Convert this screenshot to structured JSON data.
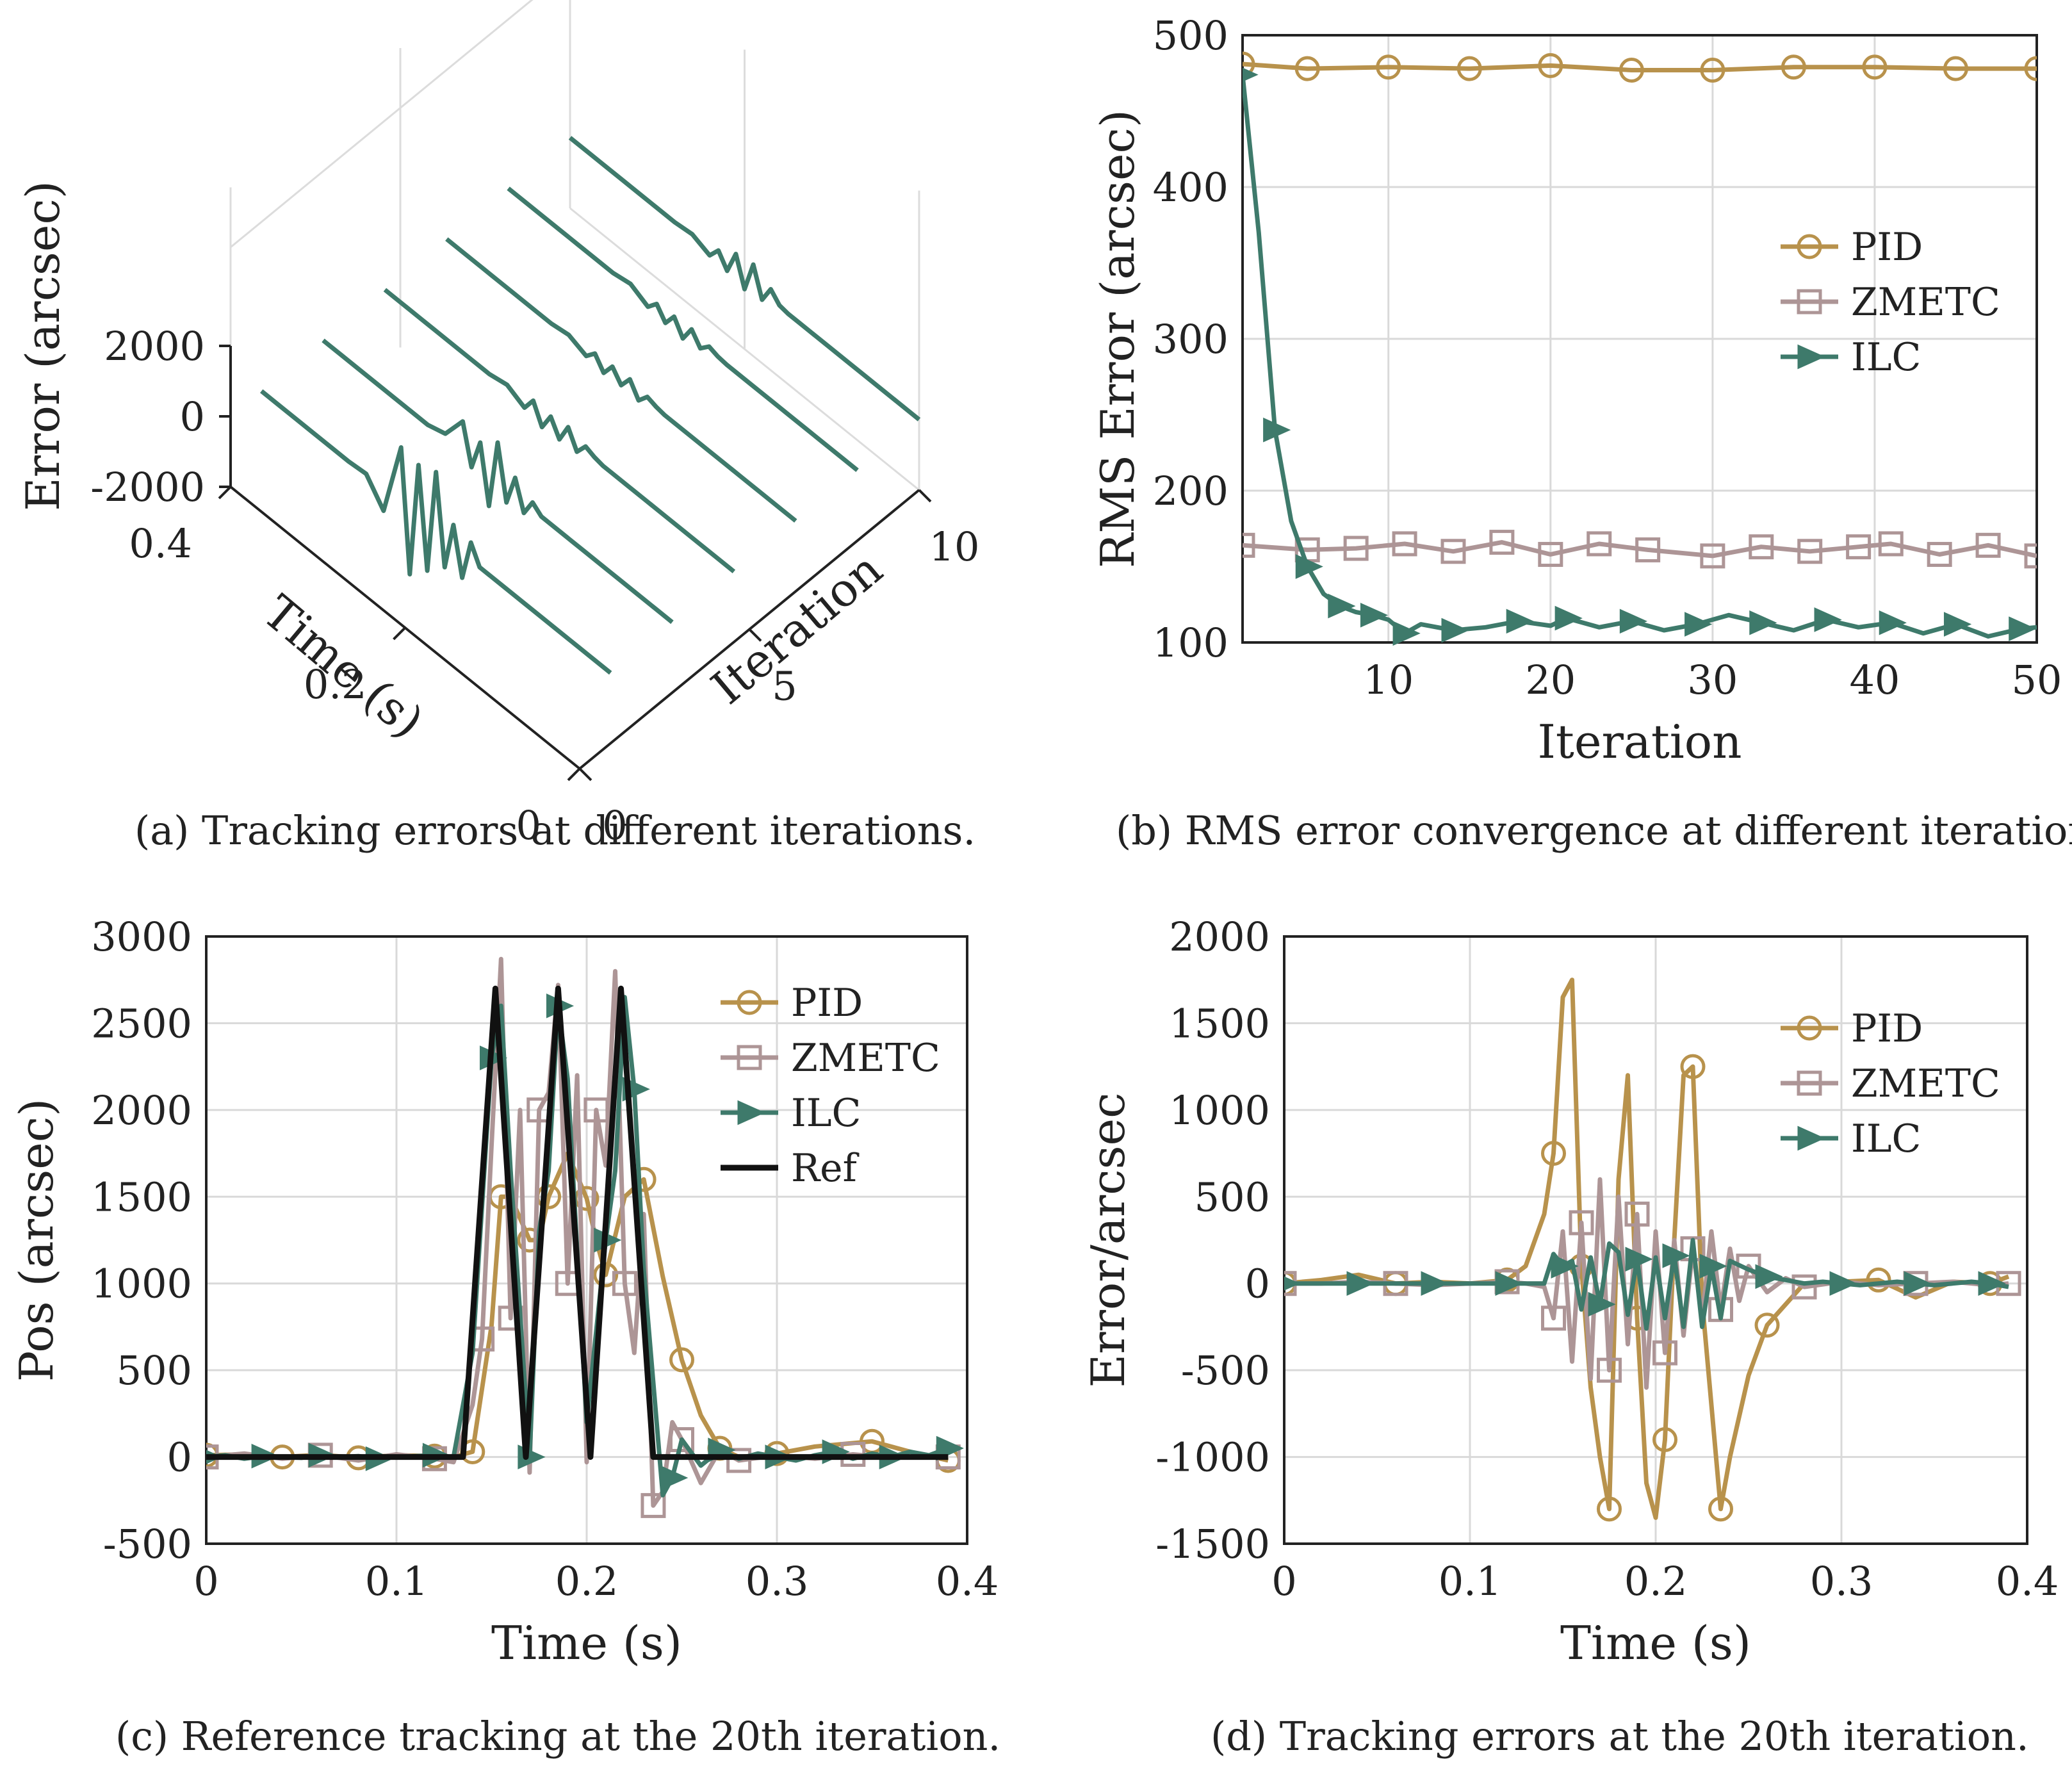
{
  "colors": {
    "pid": "#B8924C",
    "zmetc": "#AD9596",
    "ilc": "#3E7A6B",
    "ref": "#111111"
  },
  "captions": {
    "a": "(a)  Tracking errors at different iterations.",
    "b": "(b)  RMS error convergence at different iterations.",
    "c": "(c)  Reference tracking at the 20th iteration.",
    "d": "(d)  Tracking errors at the 20th iteration."
  },
  "chart_data": [
    {
      "id": "a",
      "type": "line",
      "title": "",
      "zlabel": "Error (arcsec)",
      "xlabel": "Time (s)",
      "ylabel": "Iteration",
      "time_ticks": [
        "0",
        "0.2",
        "0.4"
      ],
      "iter_ticks": [
        "0",
        "5",
        "10"
      ],
      "error_ticks": [
        "-2000",
        "0",
        "2000"
      ],
      "iterations": [
        1,
        3,
        5,
        7,
        9,
        11
      ],
      "traces": [
        [
          0.4,
          0.38,
          0.36,
          0.34,
          0.32,
          0.3,
          0.28,
          0.26,
          0.24,
          0.23,
          0.22,
          0.21,
          0.2,
          0.19,
          0.18,
          0.17,
          0.16,
          0.15,
          0.14,
          0.12,
          0.1,
          0.08,
          0.06,
          0.04,
          0.02,
          0.0
        ],
        [
          0,
          0,
          0,
          0,
          0,
          0,
          50,
          -600,
          1600,
          -1800,
          1500,
          -1300,
          1700,
          -800,
          600,
          -700,
          500,
          0,
          0,
          0,
          0,
          0,
          0,
          0,
          0,
          0
        ],
        [
          0,
          0,
          0,
          0,
          0,
          0,
          0,
          150,
          900,
          -200,
          700,
          -900,
          1100,
          -400,
          500,
          -300,
          200,
          0,
          0,
          0,
          0,
          0,
          0,
          0,
          0,
          0
        ],
        [
          0,
          0,
          0,
          0,
          0,
          0,
          0,
          100,
          -150,
          250,
          -300,
          200,
          -250,
          300,
          -200,
          150,
          50,
          0,
          0,
          0,
          0,
          0,
          0,
          0,
          0,
          0
        ],
        [
          0,
          0,
          0,
          0,
          0,
          0,
          0,
          80,
          -120,
          150,
          -200,
          180,
          -150,
          220,
          -180,
          120,
          40,
          0,
          0,
          0,
          0,
          0,
          0,
          0,
          0,
          0
        ],
        [
          0,
          0,
          0,
          0,
          0,
          0,
          0,
          90,
          -160,
          120,
          -220,
          160,
          -260,
          200,
          -140,
          110,
          30,
          0,
          0,
          0,
          0,
          0,
          0,
          0,
          0,
          0
        ],
        [
          0,
          0,
          0,
          0,
          0,
          0,
          0,
          60,
          -140,
          200,
          -180,
          500,
          -300,
          600,
          -200,
          300,
          40,
          0,
          0,
          0,
          0,
          0,
          0,
          0,
          0,
          0
        ]
      ]
    },
    {
      "id": "b",
      "type": "line",
      "title": "",
      "xlabel": "Iteration",
      "ylabel": "RMS Error (arcsec)",
      "xlim": [
        1,
        50
      ],
      "ylim": [
        100,
        500
      ],
      "xticks": [
        10,
        20,
        30,
        40,
        50
      ],
      "yticks": [
        100,
        200,
        300,
        400,
        500
      ],
      "legend": "right",
      "series": [
        {
          "name": "PID",
          "key": "pid",
          "marker": "circle",
          "x": [
            1,
            5,
            10,
            15,
            20,
            25,
            30,
            35,
            40,
            45,
            50
          ],
          "values": [
            481,
            478,
            479,
            478,
            480,
            477,
            477,
            479,
            479,
            478,
            478
          ]
        },
        {
          "name": "ZMETC",
          "key": "zmetc",
          "marker": "square",
          "x": [
            1,
            5,
            8,
            11,
            14,
            17,
            20,
            23,
            26,
            30,
            33,
            36,
            39,
            41,
            44,
            47,
            50
          ],
          "values": [
            164,
            161,
            162,
            165,
            160,
            166,
            158,
            165,
            161,
            157,
            163,
            160,
            163,
            165,
            158,
            164,
            157
          ]
        },
        {
          "name": "ILC",
          "key": "ilc",
          "marker": "triangle",
          "x": [
            1,
            2,
            3,
            4,
            5,
            6,
            7,
            8,
            9,
            10,
            11,
            12,
            14,
            16,
            18,
            20,
            21,
            23,
            25,
            27,
            29,
            31,
            33,
            35,
            37,
            39,
            41,
            43,
            45,
            47,
            49,
            50
          ],
          "values": [
            474,
            370,
            240,
            180,
            150,
            132,
            124,
            120,
            118,
            115,
            106,
            112,
            108,
            110,
            114,
            111,
            116,
            110,
            114,
            108,
            112,
            118,
            113,
            108,
            115,
            110,
            113,
            106,
            112,
            104,
            109,
            110
          ]
        }
      ]
    },
    {
      "id": "c",
      "type": "line",
      "title": "",
      "xlabel": "Time (s)",
      "ylabel": "Pos (arcsec)",
      "xlim": [
        0,
        0.4
      ],
      "ylim": [
        -500,
        3000
      ],
      "xticks": [
        0,
        0.1,
        0.2,
        0.3,
        0.4
      ],
      "xtick_labels": [
        "0",
        "0.1",
        "0.2",
        "0.3",
        "0.4"
      ],
      "yticks": [
        -500,
        0,
        500,
        1000,
        1500,
        2000,
        2500,
        3000
      ],
      "legend": "top-right",
      "series": [
        {
          "name": "PID",
          "key": "pid",
          "marker": "circle",
          "x": [
            0,
            0.02,
            0.04,
            0.06,
            0.08,
            0.1,
            0.12,
            0.13,
            0.14,
            0.15,
            0.155,
            0.16,
            0.17,
            0.175,
            0.18,
            0.19,
            0.2,
            0.205,
            0.21,
            0.22,
            0.23,
            0.24,
            0.25,
            0.26,
            0.27,
            0.28,
            0.3,
            0.32,
            0.35,
            0.37,
            0.39
          ],
          "values": [
            10,
            15,
            0,
            12,
            -5,
            10,
            5,
            0,
            30,
            760,
            1500,
            1500,
            1250,
            1250,
            1500,
            1750,
            1490,
            1250,
            1050,
            1500,
            1600,
            1040,
            560,
            240,
            50,
            0,
            20,
            60,
            90,
            30,
            -20
          ]
        },
        {
          "name": "ZMETC",
          "key": "zmetc",
          "marker": "square",
          "x": [
            0,
            0.02,
            0.04,
            0.06,
            0.08,
            0.1,
            0.12,
            0.13,
            0.14,
            0.145,
            0.15,
            0.155,
            0.16,
            0.165,
            0.17,
            0.175,
            0.18,
            0.185,
            0.19,
            0.195,
            0.2,
            0.205,
            0.21,
            0.215,
            0.22,
            0.225,
            0.23,
            0.235,
            0.24,
            0.245,
            0.25,
            0.26,
            0.27,
            0.28,
            0.3,
            0.32,
            0.34,
            0.36,
            0.38,
            0.39
          ],
          "values": [
            0,
            20,
            -10,
            10,
            -20,
            15,
            -10,
            -30,
            300,
            680,
            1800,
            2870,
            800,
            2000,
            -90,
            2000,
            2100,
            2720,
            1000,
            2200,
            -30,
            2000,
            1680,
            2800,
            1000,
            600,
            1400,
            -280,
            -200,
            200,
            100,
            -150,
            40,
            -20,
            10,
            -10,
            15,
            -5,
            10,
            0
          ]
        },
        {
          "name": "ILC",
          "key": "ilc",
          "marker": "triangle",
          "x": [
            0,
            0.01,
            0.02,
            0.03,
            0.04,
            0.05,
            0.06,
            0.07,
            0.08,
            0.09,
            0.1,
            0.11,
            0.12,
            0.13,
            0.14,
            0.15,
            0.155,
            0.16,
            0.17,
            0.175,
            0.18,
            0.185,
            0.19,
            0.2,
            0.21,
            0.215,
            0.22,
            0.225,
            0.23,
            0.24,
            0.245,
            0.25,
            0.26,
            0.27,
            0.28,
            0.29,
            0.3,
            0.31,
            0.32,
            0.33,
            0.34,
            0.35,
            0.36,
            0.37,
            0.38,
            0.39
          ],
          "values": [
            0,
            10,
            -10,
            5,
            0,
            -5,
            10,
            0,
            5,
            -10,
            0,
            5,
            10,
            0,
            600,
            2300,
            2600,
            1650,
            0,
            1300,
            1650,
            2600,
            2180,
            200,
            1250,
            1650,
            2650,
            2120,
            1080,
            -220,
            -120,
            100,
            -50,
            40,
            -10,
            20,
            0,
            -20,
            10,
            30,
            -10,
            20,
            0,
            30,
            10,
            50
          ]
        },
        {
          "name": "Ref",
          "key": "ref",
          "marker": "none",
          "x": [
            0,
            0.135,
            0.152,
            0.168,
            0.185,
            0.202,
            0.218,
            0.235,
            0.39
          ],
          "values": [
            0,
            0,
            2700,
            0,
            2700,
            0,
            2700,
            0,
            0
          ]
        }
      ]
    },
    {
      "id": "d",
      "type": "line",
      "title": "",
      "xlabel": "Time (s)",
      "ylabel": "Error/arcsec",
      "xlim": [
        0,
        0.4
      ],
      "ylim": [
        -1500,
        2000
      ],
      "xticks": [
        0,
        0.1,
        0.2,
        0.3,
        0.4
      ],
      "xtick_labels": [
        "0",
        "0.1",
        "0.2",
        "0.3",
        "0.4"
      ],
      "yticks": [
        -1500,
        -1000,
        -500,
        0,
        500,
        1000,
        1500,
        2000
      ],
      "legend": "top-right",
      "series": [
        {
          "name": "PID",
          "key": "pid",
          "marker": "circle",
          "x": [
            0,
            0.02,
            0.04,
            0.06,
            0.08,
            0.1,
            0.12,
            0.13,
            0.14,
            0.145,
            0.15,
            0.155,
            0.16,
            0.165,
            0.17,
            0.175,
            0.18,
            0.185,
            0.19,
            0.195,
            0.2,
            0.205,
            0.21,
            0.215,
            0.22,
            0.225,
            0.23,
            0.235,
            0.24,
            0.25,
            0.26,
            0.28,
            0.3,
            0.32,
            0.34,
            0.36,
            0.38,
            0.39
          ],
          "values": [
            0,
            20,
            50,
            0,
            10,
            0,
            20,
            100,
            400,
            750,
            1650,
            1750,
            100,
            -600,
            -1000,
            -1300,
            600,
            1200,
            -200,
            -1150,
            -1350,
            -900,
            250,
            1200,
            1250,
            -100,
            -700,
            -1300,
            -1000,
            -530,
            -240,
            0,
            10,
            20,
            -80,
            10,
            0,
            40
          ]
        },
        {
          "name": "ZMETC",
          "key": "zmetc",
          "marker": "square",
          "x": [
            0,
            0.02,
            0.04,
            0.06,
            0.08,
            0.1,
            0.12,
            0.13,
            0.14,
            0.145,
            0.15,
            0.155,
            0.16,
            0.165,
            0.17,
            0.175,
            0.18,
            0.185,
            0.19,
            0.195,
            0.2,
            0.205,
            0.21,
            0.215,
            0.22,
            0.225,
            0.23,
            0.235,
            0.24,
            0.245,
            0.25,
            0.26,
            0.27,
            0.28,
            0.3,
            0.32,
            0.34,
            0.36,
            0.38,
            0.39
          ],
          "values": [
            0,
            0,
            10,
            0,
            -10,
            0,
            10,
            0,
            -20,
            -200,
            300,
            -450,
            350,
            -550,
            600,
            -500,
            500,
            -350,
            400,
            -600,
            300,
            -400,
            250,
            -300,
            200,
            -200,
            300,
            -150,
            200,
            -100,
            100,
            -50,
            30,
            -20,
            10,
            -10,
            0,
            10,
            -10,
            0
          ]
        },
        {
          "name": "ILC",
          "key": "ilc",
          "marker": "triangle",
          "x": [
            0,
            0.01,
            0.02,
            0.03,
            0.04,
            0.05,
            0.06,
            0.07,
            0.08,
            0.09,
            0.1,
            0.11,
            0.12,
            0.13,
            0.14,
            0.145,
            0.15,
            0.155,
            0.16,
            0.165,
            0.17,
            0.175,
            0.18,
            0.185,
            0.19,
            0.195,
            0.2,
            0.205,
            0.21,
            0.215,
            0.22,
            0.225,
            0.23,
            0.235,
            0.24,
            0.25,
            0.26,
            0.27,
            0.28,
            0.29,
            0.3,
            0.31,
            0.32,
            0.33,
            0.34,
            0.35,
            0.36,
            0.37,
            0.38,
            0.39
          ],
          "values": [
            0,
            0,
            0,
            0,
            0,
            0,
            0,
            0,
            0,
            0,
            0,
            0,
            0,
            0,
            0,
            170,
            100,
            130,
            -150,
            150,
            -120,
            230,
            180,
            -180,
            140,
            -260,
            150,
            -200,
            160,
            -250,
            250,
            -250,
            100,
            -200,
            130,
            80,
            40,
            20,
            0,
            10,
            0,
            -10,
            0,
            10,
            0,
            -10,
            0,
            10,
            0,
            -20
          ]
        }
      ]
    }
  ]
}
